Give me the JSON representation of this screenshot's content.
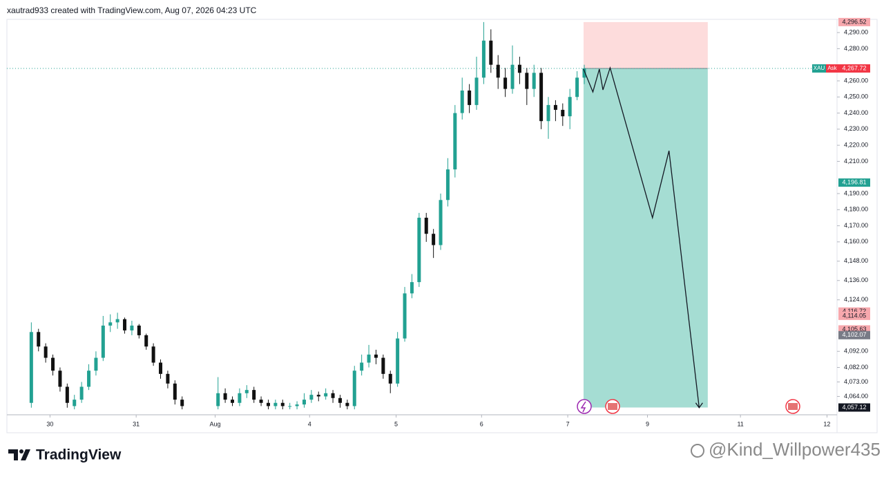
{
  "header": "xautrad933 created with TradingView.com, Aug 07, 2026 04:23 UTC",
  "footer": {
    "logo": "TradingView",
    "watermark": "@Kind_Willpower435"
  },
  "chart_data": {
    "type": "candlestick",
    "up_color": "#22a192",
    "down_color": "#111111",
    "x": [
      0,
      1,
      2,
      3,
      4,
      5,
      6,
      7,
      8,
      9,
      10,
      11,
      12,
      13,
      14,
      15,
      16,
      17,
      18,
      19,
      20,
      21,
      26,
      27,
      28,
      29,
      30,
      31,
      32,
      33,
      34,
      35,
      36,
      37,
      38,
      39,
      40,
      41,
      42,
      43,
      44,
      45,
      46,
      47,
      48,
      49,
      50,
      51,
      52,
      53,
      54,
      55,
      56,
      57,
      58,
      59,
      60,
      61,
      62,
      63,
      64,
      65,
      66,
      67,
      68,
      69,
      70,
      71,
      72,
      73,
      74,
      75,
      76,
      77
    ],
    "open": [
      4060,
      4104,
      4095,
      4088,
      4080,
      4070,
      4058,
      4062,
      4070,
      4080,
      4088,
      4108,
      4110,
      4112,
      4105,
      4108,
      4102,
      4095,
      4085,
      4078,
      4072,
      4062,
      4058,
      4066,
      4062,
      4060,
      4066,
      4068,
      4062,
      4060,
      4058,
      4060,
      4058,
      4058,
      4059,
      4062,
      4065,
      4064,
      4066,
      4063,
      4060,
      4058,
      4080,
      4085,
      4090,
      4088,
      4078,
      4072,
      4100,
      4128,
      4135,
      4175,
      4165,
      4158,
      4186,
      4205,
      4240,
      4254,
      4245,
      4262,
      4285,
      4270,
      4262,
      4255,
      4270,
      4265,
      4255,
      4265,
      4235,
      4245,
      4242,
      4238,
      4250,
      4262
    ],
    "high": [
      4110,
      4106,
      4097,
      4090,
      4082,
      4072,
      4065,
      4073,
      4084,
      4092,
      4114,
      4115,
      4116,
      4113,
      4111,
      4109,
      4103,
      4097,
      4087,
      4080,
      4074,
      4064,
      4076,
      4069,
      4064,
      4069,
      4071,
      4070,
      4064,
      4062,
      4062,
      4062,
      4060,
      4061,
      4066,
      4068,
      4067,
      4069,
      4068,
      4065,
      4062,
      4083,
      4090,
      4096,
      4093,
      4090,
      4080,
      4104,
      4132,
      4140,
      4178,
      4178,
      4168,
      4190,
      4212,
      4245,
      4262,
      4258,
      4275,
      4296.52,
      4292,
      4276,
      4268,
      4282,
      4275,
      4268,
      4270,
      4268,
      4250,
      4248,
      4246,
      4255,
      4266,
      4270
    ],
    "low": [
      4057,
      4092,
      4085,
      4077,
      4067,
      4057,
      4056,
      4060,
      4068,
      4077,
      4086,
      4104,
      4106,
      4103,
      4102,
      4100,
      4093,
      4083,
      4075,
      4069,
      4059,
      4056,
      4056,
      4060,
      4058,
      4058,
      4063,
      4060,
      4058,
      4056,
      4056,
      4056,
      4056,
      4056,
      4057,
      4060,
      4061,
      4062,
      4060,
      4057,
      4056,
      4056,
      4077,
      4082,
      4084,
      4075,
      4066,
      4070,
      4098,
      4125,
      4132,
      4160,
      4150,
      4155,
      4182,
      4200,
      4236,
      4240,
      4242,
      4258,
      4265,
      4255,
      4250,
      4252,
      4258,
      4245,
      4250,
      4230,
      4224,
      4235,
      4232,
      4230,
      4248,
      4258
    ],
    "close": [
      4104,
      4095,
      4088,
      4080,
      4070,
      4060,
      4062,
      4070,
      4080,
      4088,
      4108,
      4110,
      4112,
      4105,
      4108,
      4102,
      4095,
      4085,
      4078,
      4072,
      4062,
      4058,
      4066,
      4062,
      4060,
      4066,
      4068,
      4062,
      4060,
      4058,
      4060,
      4058,
      4058,
      4059,
      4062,
      4065,
      4064,
      4066,
      4063,
      4060,
      4058,
      4080,
      4085,
      4090,
      4088,
      4078,
      4072,
      4100,
      4128,
      4135,
      4175,
      4165,
      4158,
      4186,
      4205,
      4240,
      4254,
      4245,
      4262,
      4285,
      4270,
      4262,
      4255,
      4270,
      4265,
      4255,
      4265,
      4235,
      4245,
      4242,
      4238,
      4250,
      4262,
      4267.72
    ],
    "xlim": [
      -3.4,
      112.2
    ],
    "xticks": [
      {
        "value": 2.6,
        "label": "30"
      },
      {
        "value": 14.6,
        "label": "31"
      },
      {
        "value": 25.6,
        "label": "Aug"
      },
      {
        "value": 38.75,
        "label": "4"
      },
      {
        "value": 50.8,
        "label": "5"
      },
      {
        "value": 62.7,
        "label": "6"
      },
      {
        "value": 74.7,
        "label": "7"
      },
      {
        "value": 85.8,
        "label": "9"
      },
      {
        "value": 98.75,
        "label": "11"
      },
      {
        "value": 110.8,
        "label": "12"
      }
    ],
    "ylim": [
      4052.6,
      4298.2
    ],
    "yticks": [
      {
        "value": 4290,
        "label": "4,290.00"
      },
      {
        "value": 4280,
        "label": "4,280.00"
      },
      {
        "value": 4260,
        "label": "4,260.00"
      },
      {
        "value": 4250,
        "label": "4,250.00"
      },
      {
        "value": 4240,
        "label": "4,240.00"
      },
      {
        "value": 4230,
        "label": "4,230.00"
      },
      {
        "value": 4220,
        "label": "4,220.00"
      },
      {
        "value": 4210,
        "label": "4,210.00"
      },
      {
        "value": 4190,
        "label": "4,190.00"
      },
      {
        "value": 4180,
        "label": "4,180.00"
      },
      {
        "value": 4170,
        "label": "4,170.00"
      },
      {
        "value": 4160,
        "label": "4,160.00"
      },
      {
        "value": 4148,
        "label": "4,148.00"
      },
      {
        "value": 4136,
        "label": "4,136.00"
      },
      {
        "value": 4124,
        "label": "4,124.00"
      },
      {
        "value": 4092,
        "label": "4,092.00"
      },
      {
        "value": 4082,
        "label": "4,082.00"
      },
      {
        "value": 4073,
        "label": "4,073.00"
      },
      {
        "value": 4064,
        "label": "4,064.00"
      }
    ],
    "price_tags": {
      "values": [
        4296.52,
        4267.72,
        4196.81,
        4116.72,
        4114.05,
        4105.63,
        4102.07,
        4057.12
      ],
      "value_labels": [
        "4,296.52",
        "4,267.72",
        "4,196.81",
        "4,116.72",
        "4,114.05",
        "4,105.63",
        "4,102.07",
        "4,057.12"
      ],
      "colors": [
        "#f7a8ad",
        "#f23645",
        "#22a192",
        "#f7a8ad",
        "#f7a8ad",
        "#f7a8ad",
        "#787b86",
        "#131722"
      ]
    },
    "symbol_tag": "XAU",
    "ask_tag": "Ask",
    "position": {
      "entry": 4267.72,
      "stop": 4296.52,
      "target": 4057.12,
      "x_start": 76.9,
      "x_end": 94.2
    },
    "projection": {
      "x": [
        76.9,
        78.2,
        79.1,
        79.6,
        80.6,
        86.5,
        88.8,
        93.0
      ],
      "y": [
        4267.3,
        4253.1,
        4267.3,
        4254.4,
        4268.1,
        4175.0,
        4216.6,
        4057
      ]
    }
  }
}
